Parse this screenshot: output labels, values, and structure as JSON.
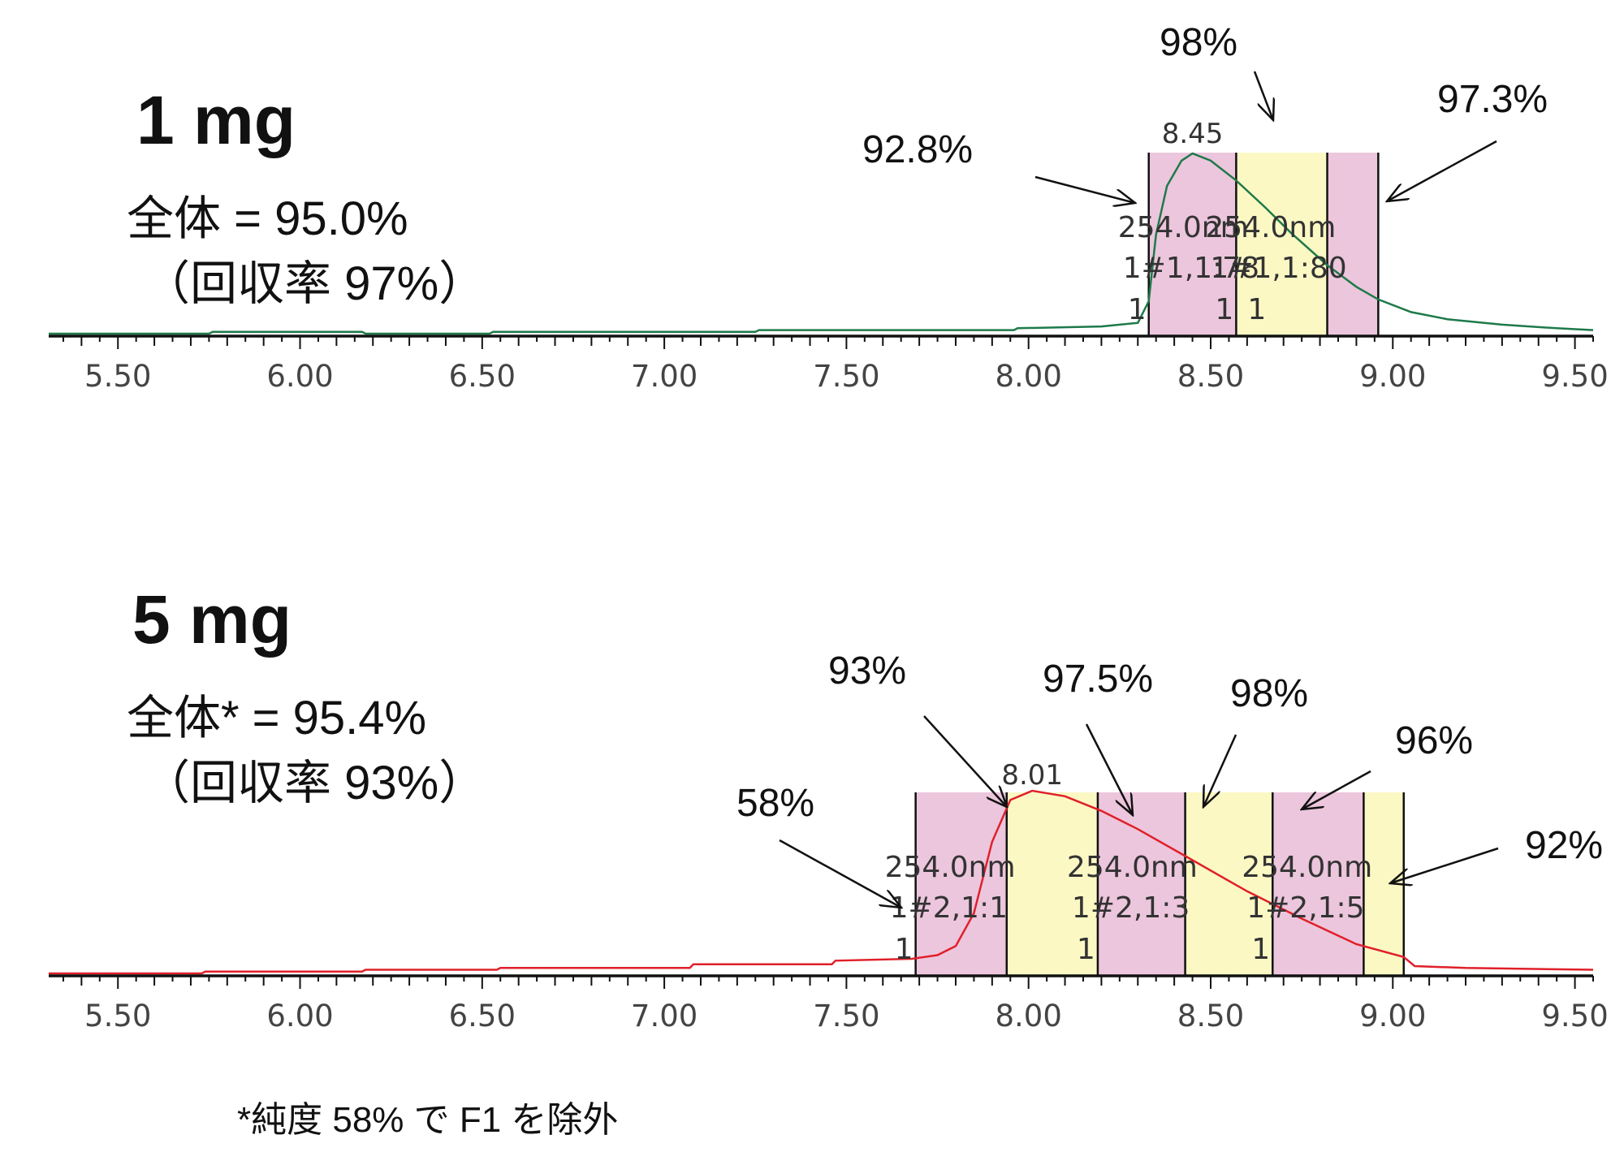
{
  "panels": [
    {
      "title": "1 mg",
      "overall": "全体 = 95.0%",
      "recovery": "（回収率 97%）",
      "peak_label": "8.45",
      "curve_color": "#1e7a4a",
      "fraction_labels": [
        {
          "wavelength": "254.0nm",
          "id": "1#1,1:78",
          "num": "1"
        },
        {
          "wavelength": "254.0nm",
          "id": "1#1,1:80",
          "num": "1"
        },
        {
          "wavelength": "",
          "id": "",
          "num": "1"
        }
      ],
      "annotations": [
        "92.8%",
        "98%",
        "97.3%"
      ]
    },
    {
      "title": "5 mg",
      "overall": "全体* = 95.4%",
      "recovery": "（回収率 93%）",
      "peak_label": "8.01",
      "curve_color": "#e0202a",
      "fraction_labels": [
        {
          "wavelength": "254.0nm",
          "id": "1#2,1:1",
          "num": "1"
        },
        {
          "wavelength": "254.0nm",
          "id": "1#2,1:3",
          "num": "1"
        },
        {
          "wavelength": "254.0nm",
          "id": "1#2,1:5",
          "num": "1"
        }
      ],
      "annotations": [
        "58%",
        "93%",
        "97.5%",
        "98%",
        "96%",
        "92%"
      ]
    }
  ],
  "footnote": "*純度 58% で F1 を除外",
  "colors": {
    "pink": "#ecc6dc",
    "yellow": "#fbf8c4"
  },
  "chart_data": [
    {
      "type": "line",
      "xlim": [
        5.31,
        9.55
      ],
      "ticks": [
        "5.50",
        "6.00",
        "6.50",
        "7.00",
        "7.50",
        "8.00",
        "8.50",
        "9.00",
        "9.50"
      ],
      "tick_values": [
        5.5,
        6.0,
        6.5,
        7.0,
        7.5,
        8.0,
        8.5,
        9.0,
        9.5
      ],
      "fractions": [
        {
          "start": 8.33,
          "end": 8.57,
          "color": "pink",
          "purity": "92.8%"
        },
        {
          "start": 8.57,
          "end": 8.82,
          "color": "yellow",
          "purity": "98%"
        },
        {
          "start": 8.82,
          "end": 8.96,
          "color": "pink",
          "purity": "97.3%"
        }
      ],
      "peak_x": 8.45,
      "series": [
        {
          "x": [
            5.31,
            5.75,
            5.76,
            6.17,
            6.18,
            6.52,
            6.53,
            7.25,
            7.26,
            7.96,
            7.97,
            8.2,
            8.3,
            8.33,
            8.35,
            8.38,
            8.42,
            8.45,
            8.5,
            8.57,
            8.65,
            8.72,
            8.82,
            8.9,
            8.96,
            9.05,
            9.15,
            9.3,
            9.45,
            9.55
          ],
          "y": [
            0,
            0,
            0.01,
            0.01,
            0,
            0,
            0.01,
            0.01,
            0.02,
            0.02,
            0.03,
            0.04,
            0.06,
            0.18,
            0.55,
            0.82,
            0.96,
            1.0,
            0.96,
            0.85,
            0.7,
            0.56,
            0.38,
            0.26,
            0.19,
            0.12,
            0.08,
            0.05,
            0.03,
            0.02
          ]
        }
      ]
    },
    {
      "type": "line",
      "xlim": [
        5.31,
        9.55
      ],
      "ticks": [
        "5.50",
        "6.00",
        "6.50",
        "7.00",
        "7.50",
        "8.00",
        "8.50",
        "9.00",
        "9.50"
      ],
      "tick_values": [
        5.5,
        6.0,
        6.5,
        7.0,
        7.5,
        8.0,
        8.5,
        9.0,
        9.5
      ],
      "fractions": [
        {
          "start": 7.69,
          "end": 7.94,
          "color": "pink",
          "purity": "58%"
        },
        {
          "start": 7.94,
          "end": 8.19,
          "color": "yellow",
          "purity": "93%"
        },
        {
          "start": 8.19,
          "end": 8.43,
          "color": "pink",
          "purity": "97.5%"
        },
        {
          "start": 8.43,
          "end": 8.67,
          "color": "yellow",
          "purity": "98%"
        },
        {
          "start": 8.67,
          "end": 8.92,
          "color": "pink",
          "purity": "96%"
        },
        {
          "start": 8.92,
          "end": 9.03,
          "color": "yellow",
          "purity": "92%"
        }
      ],
      "peak_x": 8.01,
      "series": [
        {
          "x": [
            5.31,
            5.73,
            5.74,
            6.17,
            6.18,
            6.54,
            6.55,
            7.07,
            7.08,
            7.46,
            7.47,
            7.68,
            7.75,
            7.8,
            7.85,
            7.9,
            7.95,
            8.01,
            8.1,
            8.2,
            8.3,
            8.45,
            8.6,
            8.75,
            8.9,
            9.03,
            9.06,
            9.2,
            9.55
          ],
          "y": [
            0,
            0,
            0.01,
            0.01,
            0.02,
            0.02,
            0.03,
            0.03,
            0.05,
            0.05,
            0.07,
            0.08,
            0.1,
            0.15,
            0.33,
            0.72,
            0.95,
            1.0,
            0.97,
            0.89,
            0.79,
            0.62,
            0.45,
            0.3,
            0.16,
            0.09,
            0.04,
            0.03,
            0.02
          ]
        }
      ]
    }
  ]
}
